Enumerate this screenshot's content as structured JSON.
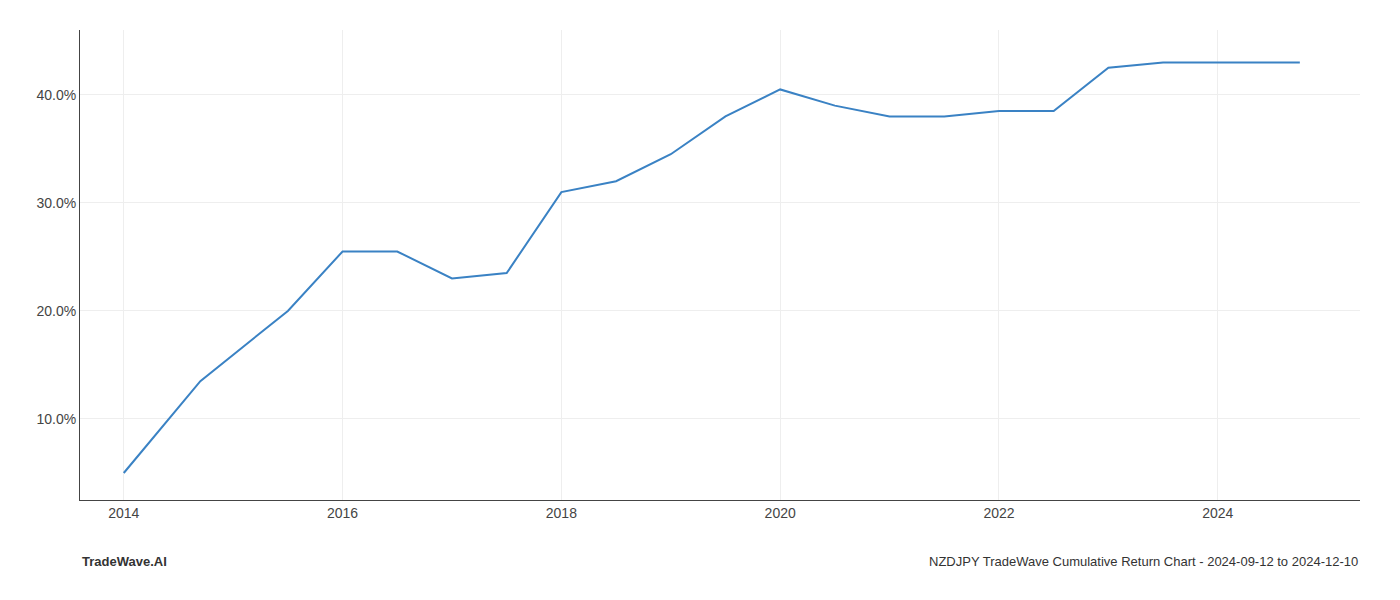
{
  "chart_data": {
    "type": "line",
    "x": [
      2014.0,
      2014.7,
      2015.5,
      2016.0,
      2016.5,
      2017.0,
      2017.5,
      2018.0,
      2018.5,
      2019.0,
      2019.5,
      2020.0,
      2020.5,
      2021.0,
      2021.5,
      2022.0,
      2022.5,
      2023.0,
      2023.5,
      2024.0,
      2024.75
    ],
    "values": [
      5.0,
      13.5,
      20.0,
      25.5,
      25.5,
      23.0,
      23.5,
      31.0,
      32.0,
      34.5,
      38.0,
      40.5,
      39.0,
      38.0,
      38.0,
      38.5,
      38.5,
      42.5,
      43.0,
      43.0,
      43.0
    ],
    "color": "#3a82c4",
    "xlim": [
      2013.6,
      2025.3
    ],
    "ylim": [
      2.5,
      46.0
    ],
    "xticks": [
      2014,
      2016,
      2018,
      2020,
      2022,
      2024
    ],
    "yticks": [
      {
        "value": 10.0,
        "label": "10.0%"
      },
      {
        "value": 20.0,
        "label": "20.0%"
      },
      {
        "value": 30.0,
        "label": "30.0%"
      },
      {
        "value": 40.0,
        "label": "40.0%"
      }
    ],
    "grid": true,
    "annotations": [
      "TradeWave.AI",
      "NZDJPY TradeWave Cumulative Return Chart - 2024-09-12 to 2024-12-10"
    ]
  }
}
